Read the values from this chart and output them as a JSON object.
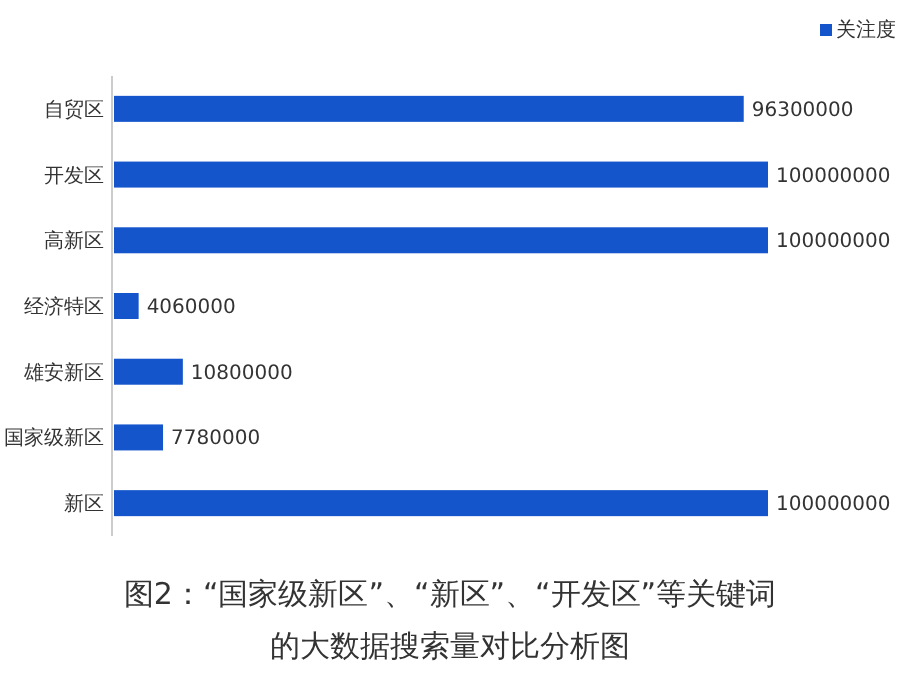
{
  "chart_data": {
    "type": "bar",
    "orientation": "horizontal",
    "categories": [
      "自贸区",
      "开发区",
      "高新区",
      "经济特区",
      "雄安新区",
      "国家级新区",
      "新区"
    ],
    "series": [
      {
        "name": "关注度",
        "color": "#1455cc",
        "values": [
          96300000,
          100000000,
          100000000,
          4060000,
          10800000,
          7780000,
          100000000
        ]
      }
    ],
    "data_labels": true,
    "legend": "top right",
    "grid": false,
    "annotations": [
      "图2：“国家级新区”、“新区”、“开发区”等关键词的大数据搜索量对比分析图"
    ]
  }
}
